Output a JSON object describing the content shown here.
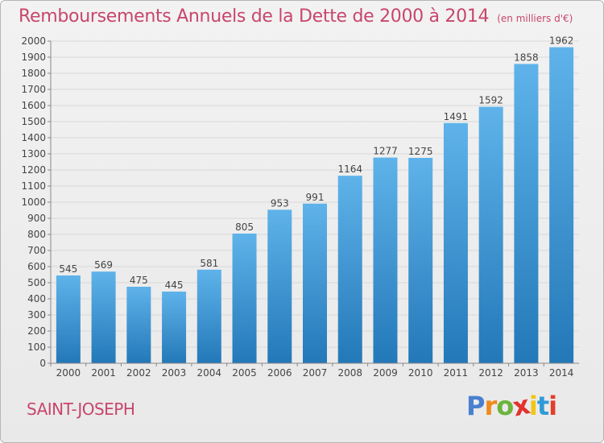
{
  "title": "Remboursements Annuels de la Dette de 2000 à 2014",
  "subtitle": "(en milliers d'€)",
  "place": "SAINT-JOSEPH",
  "brand": {
    "letters": [
      "P",
      "r",
      "o",
      "x",
      "i",
      "t",
      "i"
    ],
    "colors": [
      "#4a7fd0",
      "#f08a1c",
      "#6cb43c",
      "#e2322e",
      "#f4c514",
      "#2f9bd6",
      "#e0402a"
    ]
  },
  "colors": {
    "bar_light": "#5fb3ea",
    "bar_dark": "#2378b8",
    "grid": "#d8d8d8",
    "text": "#444444",
    "accent": "#c8466c"
  },
  "chart_data": {
    "type": "bar",
    "title": "Remboursements Annuels de la Dette de 2000 à 2014",
    "xlabel": "",
    "ylabel": "",
    "categories": [
      "2000",
      "2001",
      "2002",
      "2003",
      "2004",
      "2005",
      "2006",
      "2007",
      "2008",
      "2009",
      "2010",
      "2011",
      "2012",
      "2013",
      "2014"
    ],
    "values": [
      545,
      569,
      475,
      445,
      581,
      805,
      953,
      991,
      1164,
      1277,
      1275,
      1491,
      1592,
      1858,
      1962
    ],
    "ylim": [
      0,
      2000
    ],
    "ytick_step": 100
  }
}
